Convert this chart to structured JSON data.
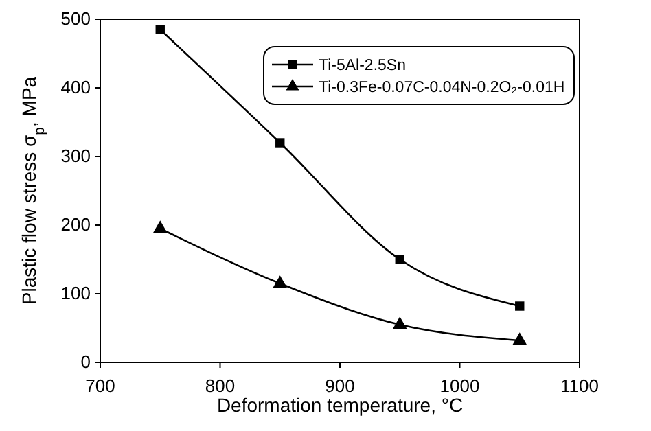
{
  "chart_data": {
    "type": "line",
    "xlabel": "Deformation temperature, °C",
    "ylabel": "Plastic flow stress σ$_{p}$, MPa",
    "x": [
      750,
      850,
      950,
      1050
    ],
    "series": [
      {
        "name": "Ti-5Al-2.5Sn",
        "color": "#000000",
        "marker": "square",
        "values": [
          485,
          320,
          150,
          82
        ]
      },
      {
        "name": "Ti-0.3Fe-0.07C-0.04N-0.2O₂-0.01H",
        "color": "#000000",
        "marker": "triangle",
        "values": [
          195,
          115,
          55,
          32
        ]
      }
    ],
    "xlim": [
      700,
      1100
    ],
    "xticks": [
      700,
      800,
      900,
      1000,
      1100
    ],
    "ylim": [
      0,
      500
    ],
    "yticks": [
      0,
      100,
      200,
      300,
      400,
      500
    ],
    "grid": false,
    "legend": "top right",
    "line_style": "solid"
  }
}
